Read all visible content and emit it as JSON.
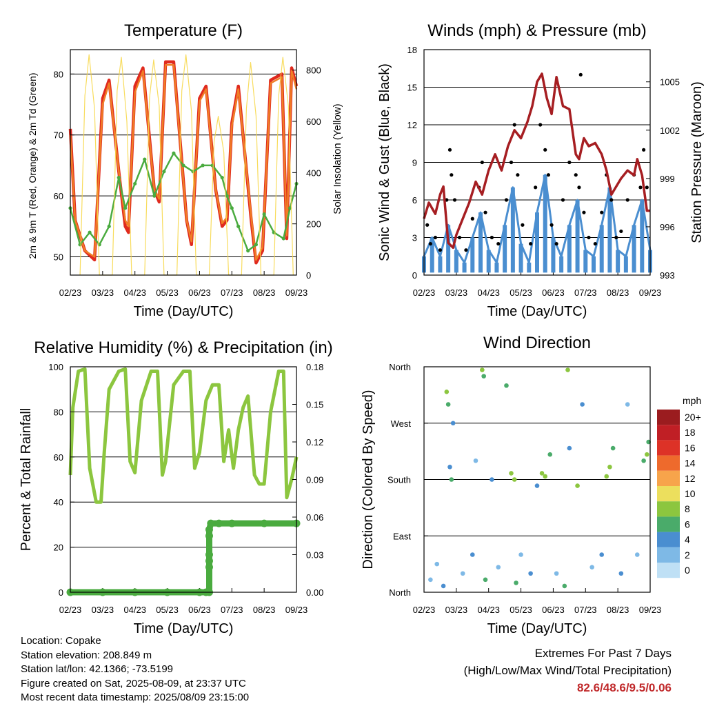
{
  "chart_data": [
    {
      "type": "line",
      "title": "Temperature (F)",
      "xlabel": "Time (Day/UTC)",
      "ylabel": "2m & 9m T (Red, Orange) & 2m Td (Green)",
      "ylabel_right": "Solar Insolation (Yellow)",
      "x_ticks": [
        "02/23",
        "03/23",
        "04/23",
        "05/23",
        "06/23",
        "07/23",
        "08/23",
        "09/23"
      ],
      "ylim": [
        47,
        84
      ],
      "yticks": [
        50,
        60,
        70,
        80
      ],
      "ylim_right": [
        0,
        880
      ],
      "yticks_right": [
        0,
        200,
        400,
        600,
        800
      ],
      "grid": "horizontal",
      "series": [
        {
          "name": "2m T",
          "color": "#e02a1e",
          "x": [
            0,
            0.15,
            0.45,
            0.75,
            1.0,
            1.2,
            1.5,
            1.7,
            1.8,
            2.0,
            2.25,
            2.6,
            2.75,
            2.95,
            3.2,
            3.6,
            3.75,
            4.0,
            4.2,
            4.5,
            4.7,
            4.85,
            5.0,
            5.2,
            5.6,
            5.75,
            5.95,
            6.2,
            6.55,
            6.7,
            6.85,
            7.0
          ],
          "values": [
            71,
            56,
            51,
            49.5,
            76,
            79,
            64,
            55,
            54,
            78,
            81,
            61,
            59,
            82,
            82,
            56,
            52,
            76,
            78,
            61,
            55,
            56,
            72,
            78,
            56,
            49,
            51,
            79,
            80,
            53,
            81,
            78
          ]
        },
        {
          "name": "9m T",
          "color": "#f07e26",
          "x": [
            0,
            0.15,
            0.45,
            0.75,
            1.0,
            1.2,
            1.5,
            1.7,
            1.8,
            2.0,
            2.25,
            2.6,
            2.75,
            2.95,
            3.2,
            3.6,
            3.75,
            4.0,
            4.2,
            4.5,
            4.7,
            4.85,
            5.0,
            5.2,
            5.6,
            5.75,
            5.95,
            6.2,
            6.55,
            6.7,
            6.85,
            7.0
          ],
          "values": [
            70,
            56,
            51,
            50,
            75,
            78.5,
            64,
            56,
            55,
            77,
            80.5,
            61,
            59.5,
            81.5,
            81.5,
            56,
            52.5,
            75.5,
            77.5,
            61,
            55.5,
            56.5,
            71.5,
            77.5,
            56.5,
            49.5,
            51.5,
            78.5,
            79.5,
            53.5,
            80.5,
            77.5
          ]
        },
        {
          "name": "2m Td",
          "color": "#4aab3f",
          "x": [
            0,
            0.3,
            0.6,
            0.9,
            1.2,
            1.5,
            1.7,
            2.0,
            2.3,
            2.6,
            2.9,
            3.2,
            3.5,
            3.8,
            4.1,
            4.4,
            4.7,
            4.85,
            5.0,
            5.2,
            5.5,
            5.75,
            6.0,
            6.3,
            6.6,
            6.8,
            7.0
          ],
          "values": [
            58,
            52,
            54,
            52,
            55,
            63,
            58,
            62,
            66,
            60,
            64,
            67,
            65,
            64,
            65,
            65,
            63,
            60,
            58,
            55,
            51,
            52,
            57,
            54,
            53,
            58,
            62
          ]
        },
        {
          "name": "Solar Insolation",
          "color": "#f7d84b",
          "axis": "right",
          "x": [
            0.3,
            0.45,
            0.58,
            0.75,
            0.9,
            1.3,
            1.45,
            1.58,
            1.75,
            1.9,
            2.3,
            2.45,
            2.58,
            2.75,
            2.9,
            3.3,
            3.45,
            3.58,
            3.75,
            3.9,
            4.3,
            4.45,
            4.58,
            4.75,
            4.9,
            5.3,
            5.45,
            5.58,
            5.75,
            5.9,
            6.3,
            6.45,
            6.58,
            6.75,
            6.9
          ],
          "values": [
            0,
            700,
            860,
            650,
            0,
            0,
            720,
            850,
            600,
            0,
            0,
            690,
            840,
            660,
            0,
            0,
            720,
            860,
            640,
            0,
            0,
            520,
            620,
            480,
            0,
            0,
            650,
            830,
            620,
            0,
            0,
            700,
            850,
            660,
            0
          ]
        }
      ]
    },
    {
      "type": "scatter",
      "title": "Winds (mph) & Pressure (mb)",
      "xlabel": "Time (Day/UTC)",
      "ylabel": "Sonic Wind & Gust (Blue, Black)",
      "ylabel_right": "Station Pressure (Maroon)",
      "x_ticks": [
        "02/23",
        "03/23",
        "04/23",
        "05/23",
        "06/23",
        "07/23",
        "08/23",
        "09/23"
      ],
      "ylim": [
        0,
        18
      ],
      "yticks": [
        0,
        3,
        6,
        9,
        12,
        15,
        18
      ],
      "ylim_right": [
        993,
        1007
      ],
      "yticks_right": [
        993,
        996,
        999,
        1002,
        1005
      ],
      "grid": "horizontal",
      "series": [
        {
          "name": "Sonic Wind",
          "color": "#4a8ed0",
          "x": [
            0,
            0.25,
            0.5,
            0.75,
            1.0,
            1.25,
            1.5,
            1.75,
            2.0,
            2.25,
            2.5,
            2.75,
            3.0,
            3.25,
            3.5,
            3.75,
            4.0,
            4.25,
            4.5,
            4.75,
            5.0,
            5.25,
            5.5,
            5.75,
            6.0,
            6.25,
            6.5,
            6.75,
            7.0
          ],
          "values": [
            1.5,
            3,
            1.5,
            4,
            2,
            1,
            3,
            5,
            2,
            1,
            4,
            7,
            2.5,
            1,
            5,
            8,
            3,
            1.5,
            4,
            6,
            2,
            1.5,
            4,
            7,
            2,
            1.5,
            4,
            6,
            2
          ]
        },
        {
          "name": "Gust",
          "color": "#000000",
          "x": [
            0.1,
            0.2,
            0.35,
            0.5,
            0.7,
            0.8,
            0.85,
            0.95,
            1.1,
            1.3,
            1.5,
            1.7,
            1.8,
            1.9,
            2.1,
            2.3,
            2.55,
            2.7,
            2.8,
            2.9,
            3.05,
            3.3,
            3.45,
            3.6,
            3.75,
            3.85,
            3.95,
            4.1,
            4.3,
            4.5,
            4.7,
            4.8,
            4.85,
            4.95,
            5.1,
            5.3,
            5.5,
            5.65,
            5.8,
            5.95,
            6.1,
            6.3,
            6.5,
            6.7,
            6.8,
            6.9
          ],
          "values": [
            4,
            2.5,
            3,
            2,
            6,
            10,
            8,
            6,
            3,
            2,
            4.5,
            7,
            9,
            5,
            3,
            2.5,
            6,
            9,
            12,
            8,
            4,
            2.5,
            7,
            12,
            10,
            8,
            4,
            2.5,
            6,
            9,
            8,
            7,
            16,
            5,
            3,
            2.5,
            5,
            8,
            6,
            3,
            3.5,
            6,
            8,
            7,
            10,
            7
          ]
        },
        {
          "name": "Station Pressure",
          "color": "#a61e22",
          "axis": "right",
          "x": [
            0,
            0.15,
            0.35,
            0.5,
            0.6,
            0.75,
            0.9,
            1.0,
            1.2,
            1.4,
            1.6,
            1.8,
            2.0,
            2.2,
            2.4,
            2.6,
            2.8,
            3.0,
            3.2,
            3.35,
            3.5,
            3.65,
            3.8,
            3.95,
            4.1,
            4.3,
            4.5,
            4.7,
            4.8,
            4.95,
            5.1,
            5.3,
            5.5,
            5.65,
            5.8,
            5.95,
            6.1,
            6.3,
            6.5,
            6.6,
            6.75,
            6.9,
            7.0
          ],
          "values": [
            996.5,
            997.5,
            996.8,
            998,
            998.5,
            995,
            994.7,
            995.5,
            996.5,
            997.5,
            998.8,
            998,
            999.5,
            1000.5,
            999.5,
            1001,
            1002,
            1001.5,
            1002.5,
            1003.5,
            1005,
            1005.5,
            1004,
            1003,
            1005.3,
            1003.5,
            1003.3,
            1000.5,
            1000.2,
            1001.5,
            1001,
            1001.2,
            1000.5,
            999.5,
            998,
            998.5,
            999,
            999.5,
            999.2,
            1000.2,
            999.2,
            997,
            997
          ]
        }
      ]
    },
    {
      "type": "line",
      "title": "Relative Humidity (%) & Precipitation (in)",
      "xlabel": "Time (Day/UTC)",
      "ylabel": "Percent & Total Rainfall",
      "x_ticks": [
        "02/23",
        "03/23",
        "04/23",
        "05/23",
        "06/23",
        "07/23",
        "08/23",
        "09/23"
      ],
      "ylim": [
        0,
        100
      ],
      "yticks": [
        0,
        20,
        40,
        60,
        80,
        100
      ],
      "ylim_right": [
        0,
        0.18
      ],
      "yticks_right": [
        "0.00",
        "0.03",
        "0.06",
        "0.09",
        "0.12",
        "0.15",
        "0.18"
      ],
      "grid": "horizontal",
      "series": [
        {
          "name": "Relative Humidity",
          "color": "#8cc63f",
          "x": [
            0,
            0.08,
            0.25,
            0.45,
            0.6,
            0.8,
            0.95,
            1.05,
            1.2,
            1.5,
            1.7,
            1.85,
            2.0,
            2.2,
            2.5,
            2.7,
            2.85,
            2.95,
            3.2,
            3.5,
            3.7,
            3.85,
            4.0,
            4.2,
            4.4,
            4.6,
            4.75,
            4.9,
            5.05,
            5.2,
            5.35,
            5.5,
            5.7,
            5.85,
            6.0,
            6.2,
            6.45,
            6.6,
            6.7,
            6.85,
            7.0
          ],
          "values": [
            52,
            82,
            98,
            99,
            55,
            40,
            40,
            62,
            90,
            98,
            99,
            58,
            53,
            85,
            98,
            98,
            52,
            58,
            92,
            98,
            98,
            55,
            62,
            85,
            92,
            92,
            58,
            72,
            55,
            72,
            82,
            87,
            52,
            48,
            48,
            80,
            98,
            98,
            42,
            50,
            60
          ]
        },
        {
          "name": "Total Rainfall",
          "color": "#4aab3f",
          "axis": "right",
          "x": [
            0,
            1.0,
            2.0,
            3.0,
            4.0,
            4.2,
            4.3,
            4.3,
            4.3,
            4.3,
            4.3,
            4.3,
            4.35,
            4.6,
            5.0,
            6.0,
            7.0
          ],
          "values": [
            0,
            0,
            0,
            0,
            0,
            0,
            0,
            0.02,
            0.025,
            0.03,
            0.045,
            0.05,
            0.055,
            0.055,
            0.055,
            0.055,
            0.055
          ]
        }
      ]
    },
    {
      "type": "scatter",
      "title": "Wind Direction",
      "xlabel": "Time (Day/UTC)",
      "ylabel": "Direction (Colored By Speed)",
      "x_ticks": [
        "02/23",
        "03/23",
        "04/23",
        "05/23",
        "06/23",
        "07/23",
        "08/23",
        "09/23"
      ],
      "yticks": [
        "North",
        "East",
        "South",
        "West",
        "North"
      ],
      "ylim": [
        0,
        360
      ],
      "grid": "horizontal",
      "colorbar": {
        "label": "mph",
        "ticks": [
          "20+",
          "18",
          "16",
          "14",
          "12",
          "10",
          "8",
          "6",
          "4",
          "2",
          "0"
        ],
        "colors": [
          "#9b1c1f",
          "#c01f25",
          "#dd3227",
          "#ee6a2c",
          "#f7a44b",
          "#ecdf5d",
          "#8cc63f",
          "#4aab6a",
          "#4a8ed0",
          "#7eb9e6",
          "#bfe0f5"
        ]
      },
      "points": [
        {
          "x": 0.2,
          "y": 20,
          "mph": 1
        },
        {
          "x": 0.4,
          "y": 45,
          "mph": 2
        },
        {
          "x": 0.6,
          "y": 10,
          "mph": 3
        },
        {
          "x": 0.8,
          "y": 200,
          "mph": 4
        },
        {
          "x": 0.7,
          "y": 320,
          "mph": 7
        },
        {
          "x": 0.75,
          "y": 300,
          "mph": 6
        },
        {
          "x": 0.85,
          "y": 180,
          "mph": 5
        },
        {
          "x": 0.9,
          "y": 270,
          "mph": 4
        },
        {
          "x": 1.2,
          "y": 30,
          "mph": 2
        },
        {
          "x": 1.5,
          "y": 60,
          "mph": 3
        },
        {
          "x": 1.6,
          "y": 210,
          "mph": 2
        },
        {
          "x": 1.8,
          "y": 355,
          "mph": 8
        },
        {
          "x": 1.85,
          "y": 345,
          "mph": 6
        },
        {
          "x": 1.9,
          "y": 20,
          "mph": 5
        },
        {
          "x": 2.1,
          "y": 180,
          "mph": 3
        },
        {
          "x": 2.3,
          "y": 40,
          "mph": 2
        },
        {
          "x": 2.55,
          "y": 330,
          "mph": 5
        },
        {
          "x": 2.7,
          "y": 190,
          "mph": 7
        },
        {
          "x": 2.8,
          "y": 180,
          "mph": 8
        },
        {
          "x": 2.85,
          "y": 15,
          "mph": 6
        },
        {
          "x": 3.0,
          "y": 60,
          "mph": 2
        },
        {
          "x": 3.3,
          "y": 30,
          "mph": 3
        },
        {
          "x": 3.5,
          "y": 170,
          "mph": 4
        },
        {
          "x": 3.65,
          "y": 190,
          "mph": 8
        },
        {
          "x": 3.75,
          "y": 185,
          "mph": 7
        },
        {
          "x": 3.9,
          "y": 220,
          "mph": 5
        },
        {
          "x": 4.1,
          "y": 30,
          "mph": 2
        },
        {
          "x": 4.35,
          "y": 10,
          "mph": 6
        },
        {
          "x": 4.45,
          "y": 355,
          "mph": 8
        },
        {
          "x": 4.5,
          "y": 230,
          "mph": 4
        },
        {
          "x": 4.75,
          "y": 170,
          "mph": 7
        },
        {
          "x": 4.9,
          "y": 300,
          "mph": 3
        },
        {
          "x": 5.2,
          "y": 40,
          "mph": 2
        },
        {
          "x": 5.5,
          "y": 60,
          "mph": 3
        },
        {
          "x": 5.65,
          "y": 185,
          "mph": 7
        },
        {
          "x": 5.75,
          "y": 200,
          "mph": 8
        },
        {
          "x": 5.85,
          "y": 230,
          "mph": 5
        },
        {
          "x": 6.1,
          "y": 30,
          "mph": 3
        },
        {
          "x": 6.3,
          "y": 300,
          "mph": 2
        },
        {
          "x": 6.6,
          "y": 60,
          "mph": 2
        },
        {
          "x": 6.8,
          "y": 210,
          "mph": 6
        },
        {
          "x": 6.9,
          "y": 220,
          "mph": 7
        },
        {
          "x": 6.95,
          "y": 240,
          "mph": 5
        }
      ]
    }
  ],
  "info": {
    "location": "Location: Copake",
    "elevation": "Station elevation: 208.849 m",
    "latlon": "Station lat/lon: 42.1366; -73.5199",
    "created": "Figure created on Sat, 2025-08-09, at 23:37 UTC",
    "latest": "Most recent data timestamp: 2025/08/09 23:15:00"
  },
  "extremes": {
    "title": "Extremes For Past 7 Days",
    "subtitle": "(High/Low/Max Wind/Total Precipitation)",
    "values": "82.6/48.6/9.5/0.06"
  }
}
